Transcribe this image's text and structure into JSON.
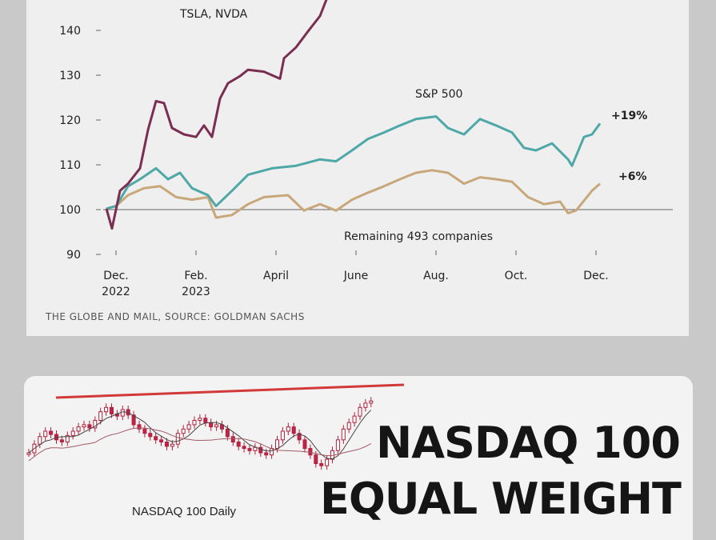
{
  "chart_data": [
    {
      "type": "line",
      "title": "",
      "xlabel": "",
      "ylabel": "",
      "x_unit": "months since Dec. 2022",
      "ylim": [
        90,
        145
      ],
      "yticks": [
        90,
        100,
        110,
        120,
        130,
        140
      ],
      "xtick_labels": [
        {
          "m": 0,
          "line1": "Dec.",
          "line2": "2022"
        },
        {
          "m": 2,
          "line1": "Feb.",
          "line2": "2023"
        },
        {
          "m": 4,
          "line1": "April",
          "line2": ""
        },
        {
          "m": 6,
          "line1": "June",
          "line2": ""
        },
        {
          "m": 8,
          "line1": "Aug.",
          "line2": ""
        },
        {
          "m": 10,
          "line1": "Oct.",
          "line2": ""
        },
        {
          "m": 12,
          "line1": "Dec.",
          "line2": ""
        }
      ],
      "baseline": 100,
      "series": [
        {
          "name": "TSLA, NVDA",
          "label_partial": "…",
          "color": "#7a2e52",
          "x": [
            -0.24,
            -0.1,
            0.1,
            0.3,
            0.6,
            0.8,
            1.0,
            1.2,
            1.4,
            1.7,
            2.0,
            2.2,
            2.4,
            2.6,
            2.8,
            3.1,
            3.3,
            3.7,
            4.1,
            4.2,
            4.5,
            4.8,
            5.1,
            5.3,
            5.4
          ],
          "y": [
            100,
            96,
            104,
            106,
            109,
            118,
            124,
            124,
            118,
            117,
            116,
            119,
            116,
            125,
            128,
            130,
            131,
            131,
            129,
            134,
            136,
            140,
            143,
            148,
            152
          ]
        },
        {
          "name": "S&P 500",
          "end_label": "+19%",
          "color": "#4fa8a8",
          "x": [
            -0.24,
            0,
            0.3,
            0.6,
            1.0,
            1.3,
            1.6,
            1.9,
            2.3,
            2.5,
            2.9,
            3.3,
            3.9,
            4.5,
            5.1,
            5.5,
            5.9,
            6.3,
            6.7,
            7.1,
            7.5,
            8.0,
            8.3,
            8.7,
            9.1,
            9.5,
            9.9,
            10.2,
            10.5,
            10.9,
            11.3,
            11.4,
            11.7,
            11.9,
            12.1
          ],
          "y": [
            100,
            101,
            105,
            107,
            109,
            107,
            108,
            105,
            103,
            101,
            104,
            108,
            109,
            110,
            111,
            111,
            113,
            116,
            117,
            119,
            120,
            121,
            118,
            117,
            120,
            119,
            117,
            114,
            113,
            115,
            111,
            110,
            116,
            117,
            119
          ]
        },
        {
          "name": "Remaining 493 companies",
          "end_label": "+6%",
          "color": "#c8a87a",
          "x": [
            -0.24,
            0,
            0.3,
            0.7,
            1.1,
            1.5,
            1.9,
            2.3,
            2.5,
            2.9,
            3.3,
            3.7,
            4.3,
            4.7,
            5.1,
            5.5,
            5.9,
            6.3,
            6.7,
            7.1,
            7.5,
            7.9,
            8.3,
            8.7,
            9.1,
            9.5,
            9.9,
            10.3,
            10.7,
            11.1,
            11.3,
            11.5,
            11.9,
            12.1
          ],
          "y": [
            100,
            101,
            103,
            105,
            105,
            103,
            102,
            103,
            98,
            99,
            101,
            103,
            103,
            100,
            101,
            100,
            102,
            104,
            105,
            107,
            108,
            109,
            108,
            106,
            107,
            107,
            106,
            103,
            101,
            102,
            99,
            100,
            104,
            106
          ]
        }
      ],
      "partial_title": "TSLA, NVDA",
      "source": "THE GLOBE AND MAIL, SOURCE: GOLDMAN SACHS"
    },
    {
      "type": "candlestick",
      "title": "NASDAQ 100 Daily",
      "overlay_title_line1": "NASDAQ 100",
      "overlay_title_line2": "EQUAL WEIGHT",
      "resistance_color": "#d23a3a",
      "closes": [
        40,
        48,
        55,
        60,
        57,
        52,
        50,
        56,
        60,
        64,
        66,
        63,
        70,
        78,
        82,
        76,
        74,
        80,
        75,
        66,
        62,
        58,
        55,
        52,
        50,
        46,
        48,
        58,
        62,
        66,
        70,
        72,
        68,
        64,
        66,
        62,
        55,
        50,
        46,
        44,
        42,
        45,
        40,
        38,
        44,
        52,
        60,
        64,
        58,
        52,
        44,
        38,
        30,
        28,
        34,
        42,
        52,
        62,
        68,
        74,
        82,
        86,
        88
      ]
    }
  ]
}
